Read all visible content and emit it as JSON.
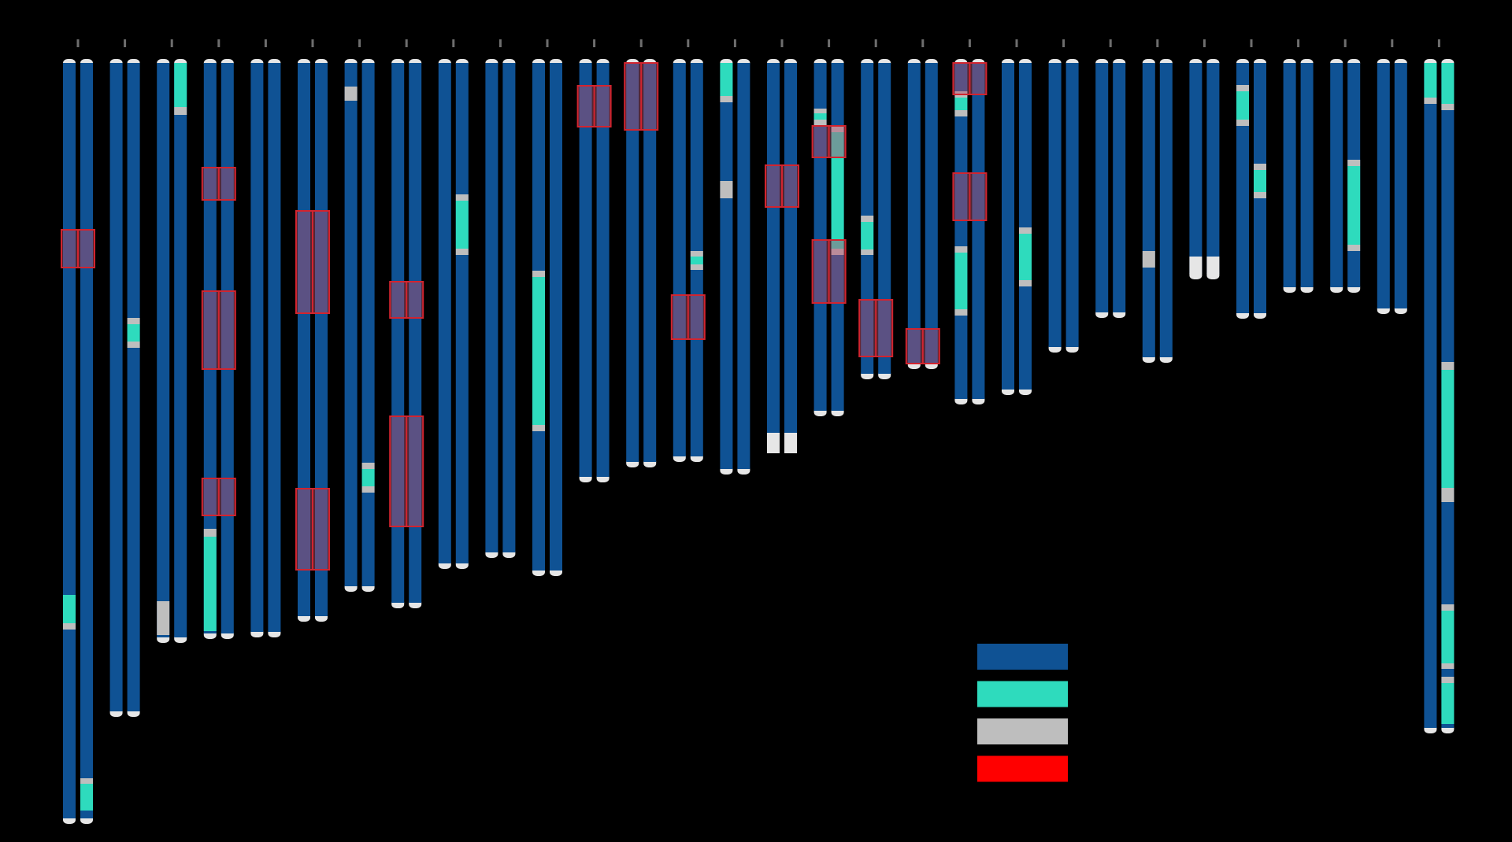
{
  "colors": {
    "background": "#000000",
    "ref": "#0f5294",
    "alt": "#2edbbd",
    "missing": "#bebebe",
    "cap": "#e6e6e6",
    "tick": "#6e6e6e",
    "highlight_stroke": "#d2242f",
    "highlight_fill": "rgba(185,80,110,0.45)"
  },
  "legend": [
    {
      "color": "#0f5294"
    },
    {
      "color": "#2edbbd"
    },
    {
      "color": "#bebebe"
    },
    {
      "color": "#ff0000"
    }
  ],
  "pairs": [
    {
      "len": 960,
      "a": [
        {
          "s": 676,
          "e": 712,
          "t": "alt"
        },
        {
          "s": 712,
          "e": 720,
          "t": "mis"
        }
      ],
      "b": [
        {
          "s": 909,
          "e": 916,
          "t": "mis"
        },
        {
          "s": 916,
          "e": 950,
          "t": "alt"
        }
      ],
      "hl": [
        [
          212,
          260
        ]
      ]
    },
    {
      "len": 824,
      "a": [],
      "b": [
        {
          "s": 324,
          "e": 332,
          "t": "mis"
        },
        {
          "s": 332,
          "e": 354,
          "t": "alt"
        },
        {
          "s": 354,
          "e": 362,
          "t": "mis"
        }
      ],
      "hl": []
    },
    {
      "len": 730,
      "a": [
        {
          "s": 684,
          "e": 727,
          "t": "mis"
        }
      ],
      "b": [
        {
          "s": 0,
          "e": 56,
          "t": "alt"
        },
        {
          "s": 56,
          "e": 66,
          "t": "mis"
        }
      ],
      "hl": []
    },
    {
      "len": 725,
      "a": [
        {
          "s": 592,
          "e": 602,
          "t": "mis"
        },
        {
          "s": 602,
          "e": 722,
          "t": "alt"
        }
      ],
      "b": [],
      "hl": [
        [
          133,
          174
        ],
        [
          290,
          389
        ],
        [
          528,
          575
        ]
      ]
    },
    {
      "len": 723,
      "a": [],
      "b": [],
      "hl": []
    },
    {
      "len": 703,
      "a": [],
      "b": [],
      "hl": [
        [
          188,
          318
        ],
        [
          541,
          644
        ]
      ]
    },
    {
      "len": 665,
      "a": [
        {
          "s": 30,
          "e": 48,
          "t": "mis"
        }
      ],
      "b": [
        {
          "s": 508,
          "e": 516,
          "t": "mis"
        },
        {
          "s": 516,
          "e": 538,
          "t": "alt"
        },
        {
          "s": 538,
          "e": 546,
          "t": "mis"
        }
      ],
      "hl": [],
      "bpos": 0
    },
    {
      "len": 686,
      "a": [],
      "b": [],
      "hl": [
        [
          278,
          324
        ],
        [
          449,
          589
        ]
      ]
    },
    {
      "len": 636,
      "a": [],
      "b": [
        {
          "s": 167,
          "e": 175,
          "t": "mis"
        },
        {
          "s": 175,
          "e": 236,
          "t": "alt"
        },
        {
          "s": 236,
          "e": 244,
          "t": "mis"
        }
      ],
      "hl": []
    },
    {
      "len": 622,
      "a": [],
      "b": [],
      "hl": []
    },
    {
      "len": 645,
      "a": [
        {
          "s": 264,
          "e": 272,
          "t": "mis"
        },
        {
          "s": 272,
          "e": 460,
          "t": "alt"
        },
        {
          "s": 460,
          "e": 468,
          "t": "mis"
        }
      ],
      "b": [],
      "hl": []
    },
    {
      "len": 526,
      "a": [],
      "b": [],
      "hl": [
        [
          29,
          81
        ]
      ]
    },
    {
      "len": 507,
      "a": [],
      "b": [],
      "hl": [
        [
          0,
          85
        ]
      ]
    },
    {
      "len": 500,
      "a": [],
      "b": [
        {
          "s": 239,
          "e": 246,
          "t": "mis"
        },
        {
          "s": 246,
          "e": 256,
          "t": "alt"
        },
        {
          "s": 256,
          "e": 263,
          "t": "mis"
        }
      ],
      "hl": [
        [
          295,
          351
        ]
      ]
    },
    {
      "len": 516,
      "a": [
        {
          "s": 0,
          "e": 42,
          "t": "alt"
        },
        {
          "s": 42,
          "e": 50,
          "t": "mis"
        },
        {
          "s": 150,
          "e": 172,
          "t": "mis"
        }
      ],
      "b": [],
      "hl": []
    },
    {
      "len": 486,
      "a": [
        {
          "s": 470,
          "e": 496,
          "t": "cap2"
        }
      ],
      "b": [
        {
          "s": 470,
          "e": 496,
          "t": "cap2"
        }
      ],
      "hl": [
        [
          130,
          183
        ]
      ]
    },
    {
      "len": 442,
      "a": [
        {
          "s": 58,
          "e": 64,
          "t": "mis"
        },
        {
          "s": 64,
          "e": 72,
          "t": "alt"
        },
        {
          "s": 72,
          "e": 80,
          "t": "mis"
        }
      ],
      "b": [
        {
          "s": 80,
          "e": 88,
          "t": "mis"
        },
        {
          "s": 88,
          "e": 236,
          "t": "alt"
        },
        {
          "s": 236,
          "e": 244,
          "t": "mis"
        }
      ],
      "hl": [
        [
          80,
          120
        ],
        [
          225,
          305
        ]
      ]
    },
    {
      "len": 395,
      "a": [
        {
          "s": 194,
          "e": 202,
          "t": "mis"
        },
        {
          "s": 202,
          "e": 237,
          "t": "alt"
        },
        {
          "s": 237,
          "e": 244,
          "t": "mis"
        }
      ],
      "b": [],
      "hl": [
        [
          301,
          373
        ]
      ]
    },
    {
      "len": 382,
      "a": [],
      "b": [],
      "hl": [
        [
          338,
          382
        ]
      ]
    },
    {
      "len": 427,
      "a": [
        {
          "s": 36,
          "e": 44,
          "t": "mis"
        },
        {
          "s": 44,
          "e": 60,
          "t": "alt"
        },
        {
          "s": 60,
          "e": 68,
          "t": "mis"
        },
        {
          "s": 233,
          "e": 241,
          "t": "mis"
        },
        {
          "s": 241,
          "e": 313,
          "t": "alt"
        },
        {
          "s": 313,
          "e": 321,
          "t": "mis"
        }
      ],
      "b": [],
      "hl": [
        [
          0,
          40
        ],
        [
          140,
          200
        ]
      ]
    },
    {
      "len": 415,
      "a": [],
      "b": [
        {
          "s": 209,
          "e": 217,
          "t": "mis"
        },
        {
          "s": 217,
          "e": 276,
          "t": "alt"
        },
        {
          "s": 276,
          "e": 284,
          "t": "mis"
        }
      ],
      "hl": []
    },
    {
      "len": 361,
      "a": [],
      "b": [],
      "hl": []
    },
    {
      "len": 317,
      "a": [],
      "b": [],
      "hl": []
    },
    {
      "len": 374,
      "a": [
        {
          "s": 239,
          "e": 260,
          "t": "mis"
        }
      ],
      "b": [],
      "hl": []
    },
    {
      "len": 268,
      "a": [
        {
          "s": 246,
          "e": 268,
          "t": "cap2"
        }
      ],
      "b": [
        {
          "s": 246,
          "e": 268,
          "t": "cap2"
        }
      ],
      "hl": []
    },
    {
      "len": 318,
      "a": [
        {
          "s": 28,
          "e": 36,
          "t": "mis"
        },
        {
          "s": 36,
          "e": 72,
          "t": "alt"
        },
        {
          "s": 72,
          "e": 80,
          "t": "mis"
        }
      ],
      "b": [
        {
          "s": 128,
          "e": 136,
          "t": "mis"
        },
        {
          "s": 136,
          "e": 164,
          "t": "alt"
        },
        {
          "s": 164,
          "e": 172,
          "t": "mis"
        }
      ],
      "hl": []
    },
    {
      "len": 285,
      "a": [],
      "b": [],
      "hl": []
    },
    {
      "len": 285,
      "a": [],
      "b": [
        {
          "s": 123,
          "e": 131,
          "t": "mis"
        },
        {
          "s": 131,
          "e": 231,
          "t": "alt"
        },
        {
          "s": 231,
          "e": 239,
          "t": "mis"
        }
      ],
      "hl": []
    },
    {
      "len": 312,
      "a": [],
      "b": [],
      "hl": []
    },
    {
      "len": 845,
      "a": [
        {
          "s": 0,
          "e": 44,
          "t": "alt"
        },
        {
          "s": 44,
          "e": 52,
          "t": "mis"
        }
      ],
      "b": [
        {
          "s": 0,
          "e": 52,
          "t": "alt"
        },
        {
          "s": 52,
          "e": 60,
          "t": "mis"
        },
        {
          "s": 380,
          "e": 390,
          "t": "mis"
        },
        {
          "s": 390,
          "e": 540,
          "t": "alt"
        },
        {
          "s": 540,
          "e": 558,
          "t": "mis"
        },
        {
          "s": 688,
          "e": 696,
          "t": "mis"
        },
        {
          "s": 696,
          "e": 763,
          "t": "alt"
        },
        {
          "s": 763,
          "e": 770,
          "t": "mis"
        },
        {
          "s": 780,
          "e": 788,
          "t": "mis"
        },
        {
          "s": 788,
          "e": 840,
          "t": "alt"
        }
      ],
      "hl": []
    }
  ]
}
